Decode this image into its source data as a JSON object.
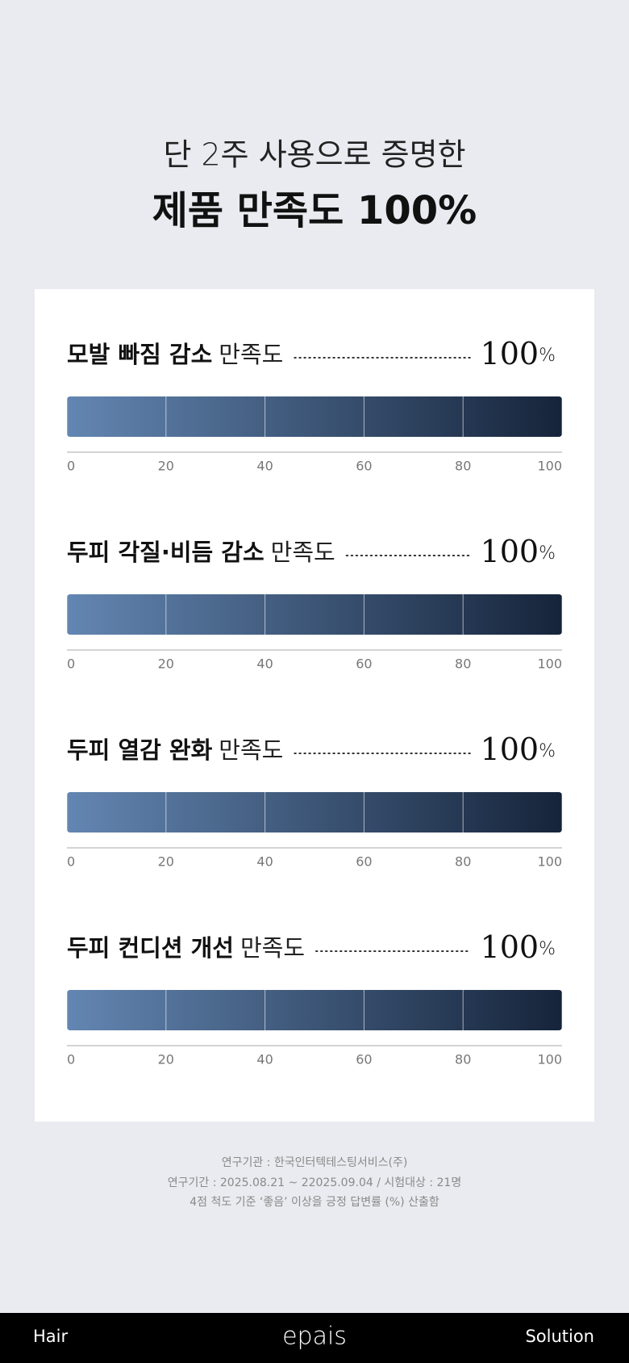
{
  "header": {
    "subtitle": "단 2주 사용으로 증명한",
    "title": "제품 만족도 100%"
  },
  "chart_data": [
    {
      "type": "bar",
      "title_bold": "모발 빠짐 감소",
      "title_regular": "만족도",
      "values": [
        100
      ],
      "value_labels": [
        "100%"
      ],
      "xlim": [
        0,
        100
      ],
      "xticks": [
        0,
        20,
        40,
        60,
        80,
        100
      ],
      "grid": true,
      "color": [
        "#6386b2",
        "#16243a"
      ]
    },
    {
      "type": "bar",
      "title_bold": "두피 각질·비듬 감소",
      "title_regular": "만족도",
      "values": [
        100
      ],
      "value_labels": [
        "100%"
      ],
      "xlim": [
        0,
        100
      ],
      "xticks": [
        0,
        20,
        40,
        60,
        80,
        100
      ],
      "grid": true,
      "color": [
        "#6386b2",
        "#16243a"
      ]
    },
    {
      "type": "bar",
      "title_bold": "두피 열감 완화",
      "title_regular": "만족도",
      "values": [
        100
      ],
      "value_labels": [
        "100%"
      ],
      "xlim": [
        0,
        100
      ],
      "xticks": [
        0,
        20,
        40,
        60,
        80,
        100
      ],
      "grid": true,
      "color": [
        "#6386b2",
        "#16243a"
      ]
    },
    {
      "type": "bar",
      "title_bold": "두피 컨디션 개선",
      "title_regular": "만족도",
      "values": [
        100
      ],
      "value_labels": [
        "100%"
      ],
      "xlim": [
        0,
        100
      ],
      "xticks": [
        0,
        20,
        40,
        60,
        80,
        100
      ],
      "grid": true,
      "color": [
        "#6386b2",
        "#16243a"
      ]
    }
  ],
  "notes": [
    "연구기관 : 한국인터텍테스팅서비스(주)",
    "연구기간 : 2025.08.21 ~ 22025.09.04 / 시험대상 : 21명",
    "4점 척도 기준 ‘좋음’ 이상을 긍정 답변률 (%) 산출함"
  ],
  "footer": {
    "left": "Hair",
    "brand": "epais",
    "right": "Solution"
  }
}
